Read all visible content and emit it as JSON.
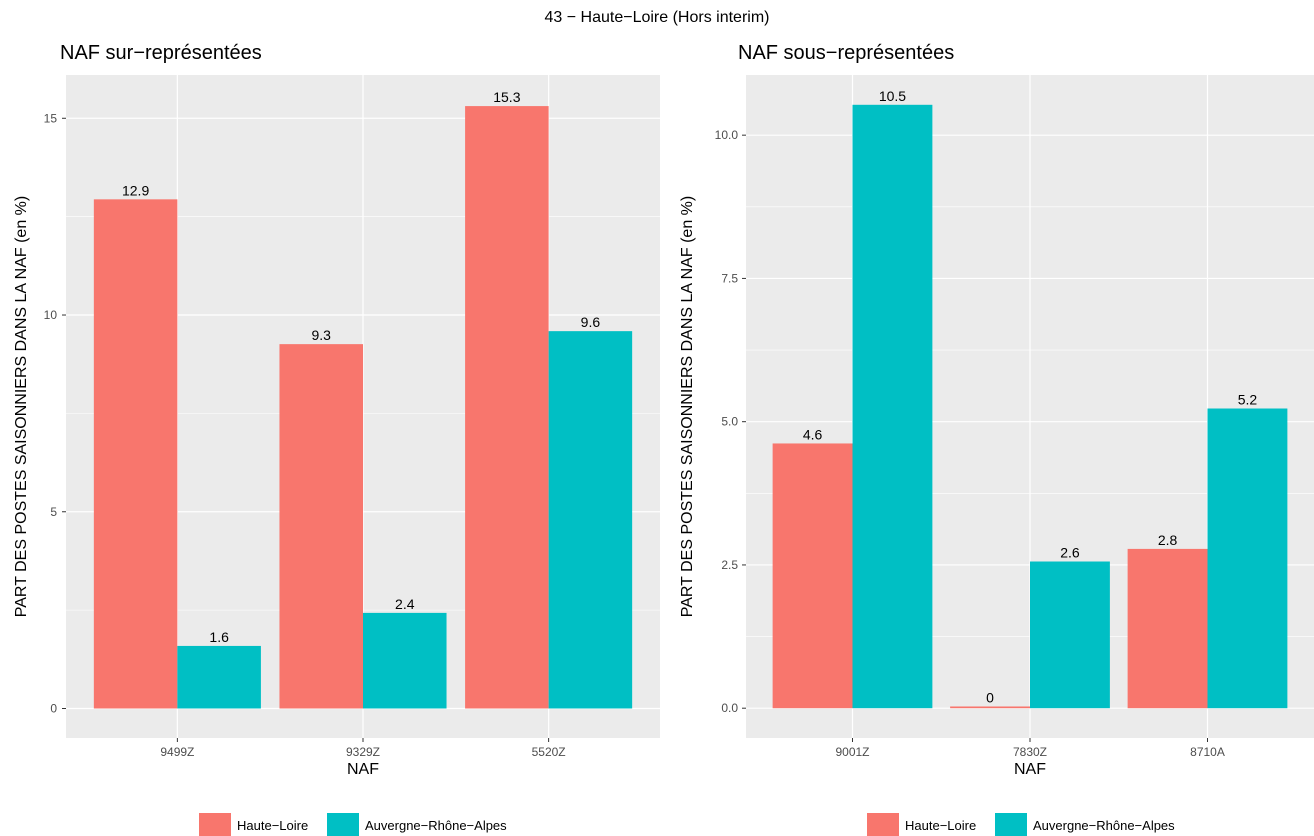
{
  "figure_title": "43 − Haute−Loire (Hors interim)",
  "colors": {
    "haute_loire": "#F8766D",
    "aura": "#00BFC4",
    "panel_bg": "#EBEBEB",
    "grid": "#FFFFFF"
  },
  "chart_data": [
    {
      "type": "bar",
      "title": "NAF sur−représentées",
      "xlabel": "NAF",
      "ylabel": "PART DES POSTES SAISONNIERS DANS LA NAF (en %)",
      "categories": [
        "9499Z",
        "9329Z",
        "5520Z"
      ],
      "ylim": [
        -0.75,
        16.1
      ],
      "yticks": [
        0,
        5,
        10,
        15
      ],
      "ytick_labels": [
        "0",
        "5",
        "10",
        "15"
      ],
      "series": [
        {
          "name": "Haute−Loire",
          "values": [
            12.94,
            9.26,
            15.31
          ],
          "labels": [
            "12.9",
            "9.3",
            "15.3"
          ]
        },
        {
          "name": "Auvergne−Rhône−Alpes",
          "values": [
            1.59,
            2.43,
            9.59
          ],
          "labels": [
            "1.6",
            "2.4",
            "9.6"
          ]
        }
      ],
      "grid": true,
      "legend": "bottom"
    },
    {
      "type": "bar",
      "title": "NAF sous−représentées",
      "xlabel": "NAF",
      "ylabel": "PART DES POSTES SAISONNIERS DANS LA NAF (en %)",
      "categories": [
        "9001Z",
        "7830Z",
        "8710A"
      ],
      "ylim": [
        -0.52,
        11.05
      ],
      "yticks": [
        0,
        2.5,
        5,
        7.5,
        10
      ],
      "ytick_labels": [
        "0.0",
        "2.5",
        "5.0",
        "7.5",
        "10.0"
      ],
      "series": [
        {
          "name": "Haute−Loire",
          "values": [
            4.62,
            0.03,
            2.78
          ],
          "labels": [
            "4.6",
            "0",
            "2.8"
          ]
        },
        {
          "name": "Auvergne−Rhône−Alpes",
          "values": [
            10.53,
            2.56,
            5.23
          ],
          "labels": [
            "10.5",
            "2.6",
            "5.2"
          ]
        }
      ],
      "grid": true,
      "legend": "bottom"
    }
  ]
}
